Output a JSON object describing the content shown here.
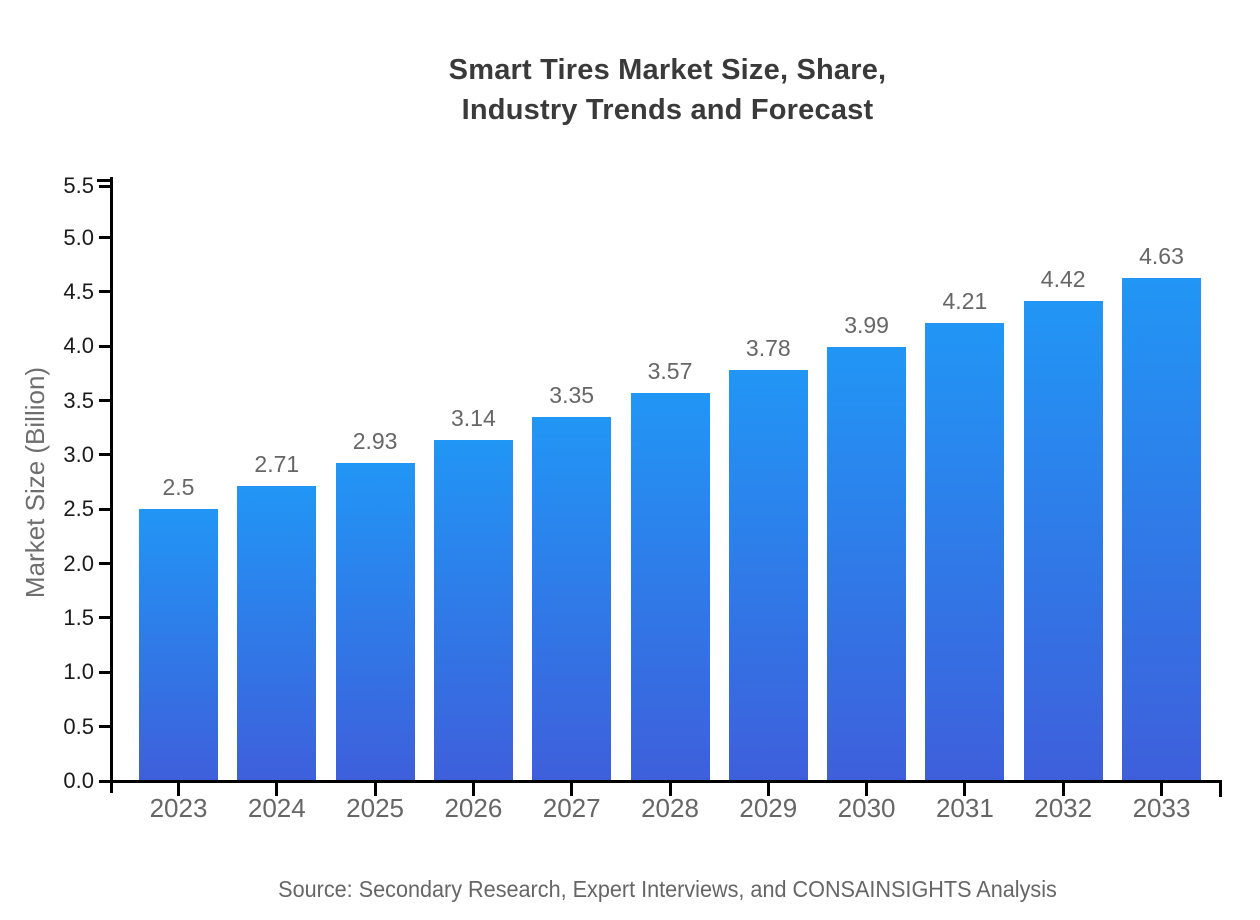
{
  "header": {
    "title_line1": "Smart Tires Market Size, Share,",
    "title_line2": "Industry Trends and Forecast"
  },
  "footer": {
    "source": "Source: Secondary Research, Expert Interviews, and CONSAINSIGHTS Analysis"
  },
  "chart_data": {
    "type": "bar",
    "title": "Smart Tires Market Size, Share, Industry Trends and Forecast",
    "xlabel": "",
    "ylabel": "Market Size (Billion)",
    "categories": [
      "2023",
      "2024",
      "2025",
      "2026",
      "2027",
      "2028",
      "2029",
      "2030",
      "2031",
      "2032",
      "2033"
    ],
    "values": [
      2.5,
      2.71,
      2.93,
      3.14,
      3.35,
      3.57,
      3.78,
      3.99,
      4.21,
      4.42,
      4.63
    ],
    "value_labels": [
      "2.5",
      "2.71",
      "2.93",
      "3.14",
      "3.35",
      "3.57",
      "3.78",
      "3.99",
      "4.21",
      "4.42",
      "4.63"
    ],
    "ylim": [
      0,
      5.5
    ],
    "ytick_step": 0.5,
    "grid": false,
    "legend": "none",
    "colors": {
      "bar_gradient_top": "#2196F5",
      "bar_gradient_bottom": "#3E5FDB",
      "axis": "#000000",
      "ytick_label": "#1a1a1a",
      "category_label": "#666666",
      "value_label": "#666666",
      "title": "#3a3a3a",
      "ylabel": "#6e6e6e",
      "source": "#666666"
    }
  }
}
